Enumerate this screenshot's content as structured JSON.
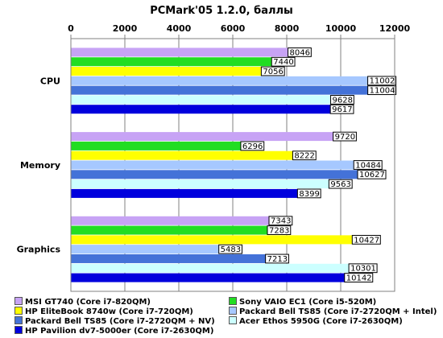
{
  "chart_data": {
    "type": "bar",
    "orientation": "horizontal",
    "title": "PCMark'05 1.2.0, баллы",
    "xlabel": "",
    "ylabel": "",
    "xlim": [
      0,
      12000
    ],
    "xticks": [
      0,
      2000,
      4000,
      6000,
      8000,
      10000,
      12000
    ],
    "grid": true,
    "legend_position": "bottom",
    "categories": [
      "CPU",
      "Memory",
      "Graphics"
    ],
    "series": [
      {
        "name": "MSI GT740 (Core i7-820QM)",
        "color": "#c7a3f5",
        "values": [
          8046,
          9720,
          7343
        ]
      },
      {
        "name": "Sony VAIO EC1 (Core i5-520M)",
        "color": "#22dd22",
        "values": [
          7440,
          6296,
          7283
        ]
      },
      {
        "name": "HP EliteBook 8740w (Core i7-720QM)",
        "color": "#ffff00",
        "values": [
          7056,
          8222,
          10427
        ]
      },
      {
        "name": "Packard Bell TS85 (Core i7-2720QM + Intel)",
        "color": "#a6c8ff",
        "values": [
          11002,
          10484,
          5483
        ]
      },
      {
        "name": "Packard Bell TS85 (Core i7-2720QM + NV)",
        "color": "#4472d8",
        "values": [
          11004,
          10627,
          7213
        ]
      },
      {
        "name": "Acer Ethos 5950G (Core i7-2630QM)",
        "color": "#ccffff",
        "values": [
          9628,
          9563,
          10301
        ]
      },
      {
        "name": "HP Pavilion dv7-5000er (Core i7-2630QM)",
        "color": "#0000dd",
        "values": [
          9617,
          8399,
          10142
        ]
      }
    ]
  }
}
